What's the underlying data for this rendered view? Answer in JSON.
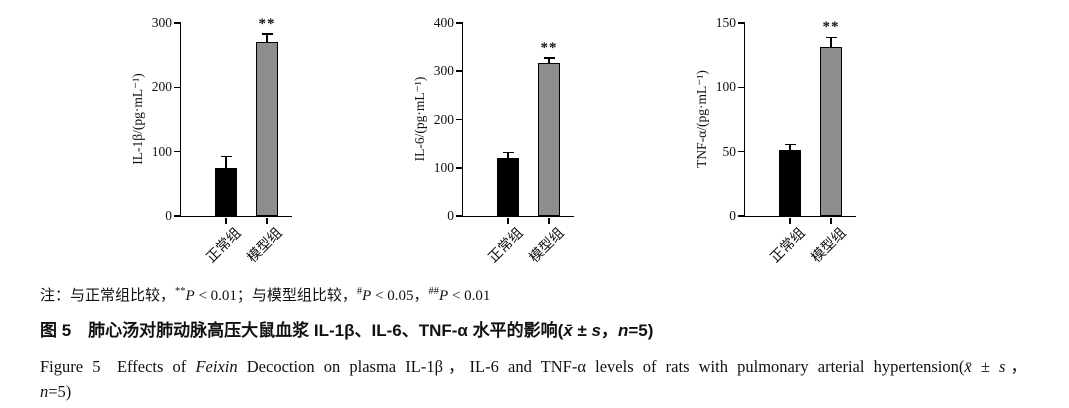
{
  "chart_data": [
    {
      "type": "bar",
      "title": "",
      "ylabel": "IL-1β/(pg·mL⁻¹)",
      "ylim": [
        0,
        300
      ],
      "yticks": [
        0,
        100,
        200,
        300
      ],
      "categories": [
        "正常组",
        "模型组"
      ],
      "values": [
        75,
        270
      ],
      "errors": [
        16,
        12
      ],
      "sig_labels": [
        "",
        "**"
      ],
      "bar_colors": [
        "#000000",
        "#8e8e8e"
      ]
    },
    {
      "type": "bar",
      "title": "",
      "ylabel": "IL-6/(pg·mL⁻¹)",
      "ylim": [
        0,
        400
      ],
      "yticks": [
        0,
        100,
        200,
        300,
        400
      ],
      "categories": [
        "正常组",
        "模型组"
      ],
      "values": [
        120,
        318
      ],
      "errors": [
        10,
        8
      ],
      "sig_labels": [
        "",
        "**"
      ],
      "bar_colors": [
        "#000000",
        "#8e8e8e"
      ]
    },
    {
      "type": "bar",
      "title": "",
      "ylabel": "TNF-α/(pg·mL⁻¹)",
      "ylim": [
        0,
        150
      ],
      "yticks": [
        0,
        50,
        100,
        150
      ],
      "categories": [
        "正常组",
        "模型组"
      ],
      "values": [
        51,
        131
      ],
      "errors": [
        4,
        7
      ],
      "sig_labels": [
        "",
        "**"
      ],
      "bar_colors": [
        "#000000",
        "#8e8e8e"
      ]
    }
  ],
  "note_segments": [
    {
      "t": "注：与正常组比较，"
    },
    {
      "t": "**",
      "sup": true
    },
    {
      "t": "P",
      "i": true
    },
    {
      "t": " < 0.01；与模型组比较，"
    },
    {
      "t": "#",
      "sup": true
    },
    {
      "t": "P",
      "i": true
    },
    {
      "t": " < 0.05，"
    },
    {
      "t": "##",
      "sup": true
    },
    {
      "t": "P",
      "i": true
    },
    {
      "t": " < 0.01"
    }
  ],
  "caption_cn_segments": [
    {
      "t": "图 5 肺心汤对肺动脉高压大鼠血浆 IL-1β、IL-6、TNF-α 水平的影响("
    },
    {
      "t": "x̄",
      "i": true
    },
    {
      "t": " ± "
    },
    {
      "t": "s",
      "i": true
    },
    {
      "t": "，"
    },
    {
      "t": "n",
      "i": true
    },
    {
      "t": "=5)"
    }
  ],
  "caption_en_line1_segments": [
    {
      "t": "Figure 5 Effects of "
    },
    {
      "t": "Feixin",
      "i": true
    },
    {
      "t": " Decoction on plasma IL-1β，IL-6 and TNF-α levels of rats with pulmonary arterial hypertension("
    },
    {
      "t": "x̄",
      "i": true
    },
    {
      "t": " ± "
    },
    {
      "t": "s",
      "i": true
    },
    {
      "t": "，"
    }
  ],
  "caption_en_line2_segments": [
    {
      "t": "n",
      "i": true
    },
    {
      "t": "=5)"
    }
  ]
}
